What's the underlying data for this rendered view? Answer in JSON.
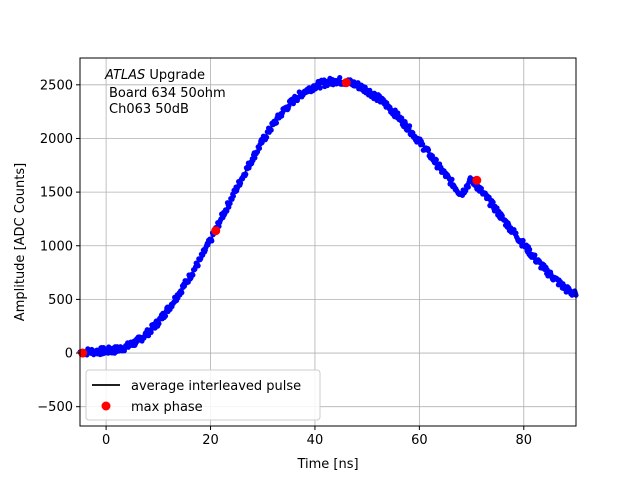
{
  "chart_data": {
    "type": "scatter",
    "title": "",
    "xlabel": "Time [ns]",
    "ylabel": "Amplitude [ADC Counts]",
    "xlim": [
      -5,
      90
    ],
    "ylim": [
      -680,
      2750
    ],
    "grid": true,
    "xticks": [
      {
        "value": 0,
        "label": "0"
      },
      {
        "value": 20,
        "label": "20"
      },
      {
        "value": 40,
        "label": "40"
      },
      {
        "value": 60,
        "label": "60"
      },
      {
        "value": 80,
        "label": "80"
      }
    ],
    "yticks": [
      {
        "value": -500,
        "label": "−500"
      },
      {
        "value": 0,
        "label": "0"
      },
      {
        "value": 500,
        "label": "500"
      },
      {
        "value": 1000,
        "label": "1000"
      },
      {
        "value": 1500,
        "label": "1500"
      },
      {
        "value": 2000,
        "label": "2000"
      },
      {
        "value": 2500,
        "label": "2500"
      }
    ],
    "annotation": {
      "atlas": "ATLAS",
      "upgrade": " Upgrade",
      "line2": "Board 634 50ohm",
      "line3": "Ch063 50dB"
    },
    "legend": {
      "placement": "lower-left",
      "entries": [
        {
          "label": "average interleaved pulse",
          "color": "#000000",
          "marker": "line"
        },
        {
          "label": "max phase",
          "color": "#ff0000",
          "marker": "dot"
        }
      ]
    },
    "series": [
      {
        "name": "average interleaved pulse",
        "kind": "line",
        "color": "#000000",
        "x": [
          -5,
          -2,
          0,
          2,
          4,
          6,
          8,
          10,
          12,
          14,
          16,
          18,
          20,
          22,
          24,
          26,
          28,
          30,
          32,
          34,
          36,
          38,
          40,
          42,
          44,
          46,
          48,
          50,
          52,
          54,
          56,
          58,
          60,
          62,
          64,
          66,
          68,
          70,
          72,
          74,
          76,
          78,
          80,
          82,
          84,
          86,
          88,
          90
        ],
        "y": [
          10,
          15,
          20,
          30,
          60,
          110,
          190,
          290,
          420,
          560,
          710,
          870,
          1050,
          1250,
          1440,
          1630,
          1810,
          1980,
          2130,
          2260,
          2360,
          2440,
          2490,
          2520,
          2540,
          2530,
          2500,
          2450,
          2380,
          2300,
          2200,
          2090,
          1970,
          1850,
          1720,
          1600,
          1480,
          1620,
          1500,
          1380,
          1250,
          1130,
          1010,
          890,
          780,
          690,
          600,
          540
        ]
      },
      {
        "name": "samples",
        "kind": "scatter",
        "color": "#0000ff",
        "x": [
          -5,
          -2,
          0,
          2,
          4,
          6,
          8,
          10,
          12,
          14,
          16,
          18,
          20,
          22,
          24,
          26,
          28,
          30,
          32,
          34,
          36,
          38,
          40,
          42,
          44,
          46,
          48,
          50,
          52,
          54,
          56,
          58,
          60,
          62,
          64,
          66,
          68,
          70,
          72,
          74,
          76,
          78,
          80,
          82,
          84,
          86,
          88,
          90
        ],
        "y": [
          10,
          15,
          20,
          30,
          60,
          110,
          190,
          290,
          420,
          560,
          710,
          870,
          1050,
          1250,
          1440,
          1630,
          1810,
          1980,
          2130,
          2260,
          2360,
          2440,
          2490,
          2520,
          2540,
          2530,
          2500,
          2450,
          2380,
          2300,
          2200,
          2090,
          1970,
          1850,
          1720,
          1600,
          1480,
          1620,
          1500,
          1380,
          1250,
          1130,
          1010,
          890,
          780,
          690,
          600,
          540
        ]
      },
      {
        "name": "max phase",
        "kind": "scatter",
        "color": "#ff0000",
        "x": [
          -4.5,
          21,
          46,
          71
        ],
        "y": [
          0,
          1140,
          2520,
          1610
        ]
      }
    ]
  }
}
